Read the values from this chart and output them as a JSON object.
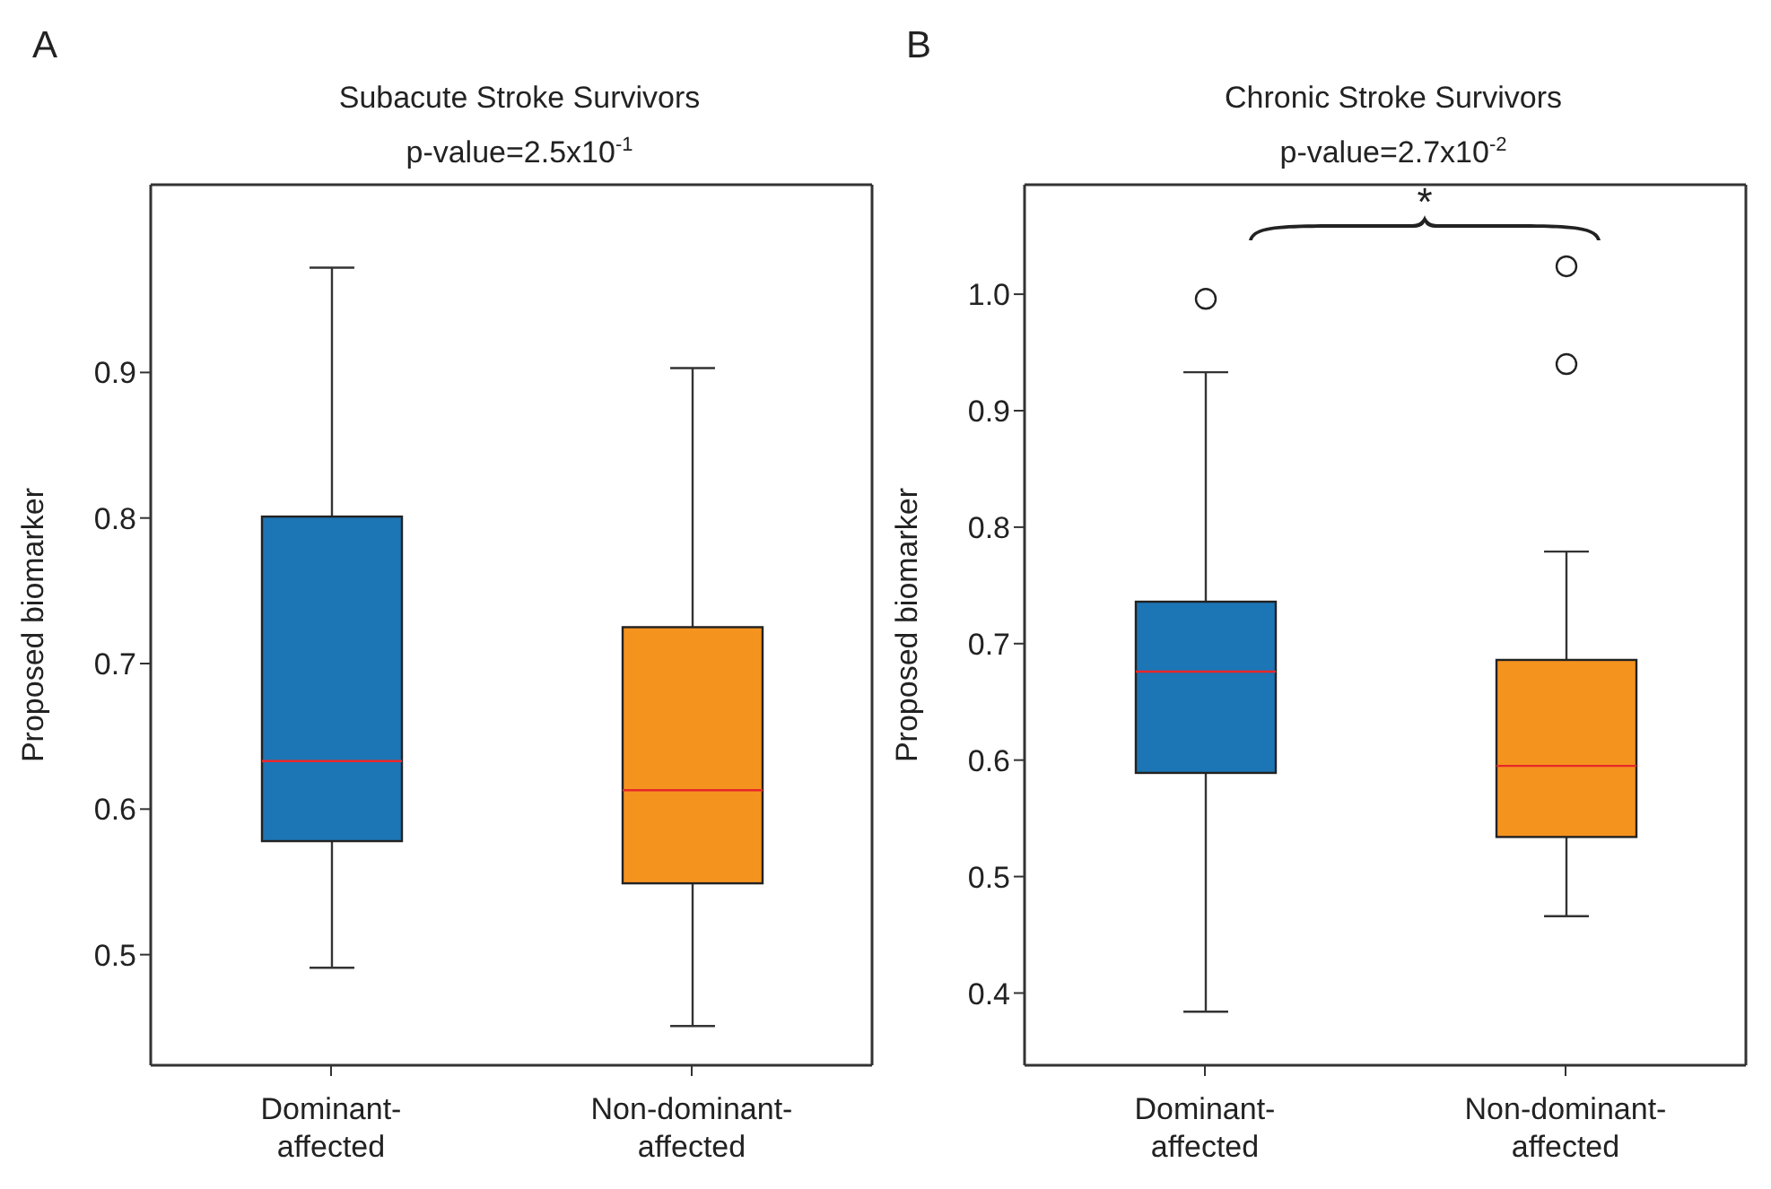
{
  "chart_data": [
    {
      "type": "box",
      "title": "Subacute Stroke Survivors",
      "subtitle": "p-value=2.5x10$^{-1}$",
      "ylabel": "Proposed biomarker",
      "categories": [
        "Dominant-affected",
        "Non-dominant-affected"
      ],
      "colors": [
        "#1c75b5",
        "#f5931f"
      ],
      "boxes": [
        {
          "low": 0.491,
          "q1": 0.578,
          "median": 0.633,
          "q3": 0.801,
          "high": 0.972
        },
        {
          "low": 0.451,
          "q1": 0.549,
          "median": 0.613,
          "q3": 0.725,
          "high": 0.903
        }
      ],
      "ylim": [
        0.424,
        1.029
      ],
      "yticks": [
        0.5,
        0.6,
        0.7,
        0.8,
        0.9
      ],
      "grid": false,
      "annotations": [
        "A"
      ]
    },
    {
      "type": "box",
      "title": "Chronic Stroke Survivors",
      "subtitle": "p-value=2.7x10$^{-2}$",
      "ylabel": "Proposed biomarker",
      "categories": [
        "Dominant-affected",
        "Non-dominant-affected"
      ],
      "colors": [
        "#1c75b5",
        "#f5931f"
      ],
      "boxes": [
        {
          "low": 0.384,
          "q1": 0.589,
          "median": 0.676,
          "q3": 0.736,
          "high": 0.933,
          "outliers": [
            0.996
          ]
        },
        {
          "low": 0.466,
          "q1": 0.534,
          "median": 0.595,
          "q3": 0.686,
          "high": 0.779,
          "outliers": [
            1.024,
            0.94
          ]
        }
      ],
      "ylim": [
        0.338,
        1.094
      ],
      "yticks": [
        0.4,
        0.5,
        0.6,
        0.7,
        0.8,
        0.9,
        {
          "value": 1,
          "label": "1.0"
        }
      ],
      "grid": false,
      "annotations": [
        "B",
        "*"
      ]
    }
  ]
}
